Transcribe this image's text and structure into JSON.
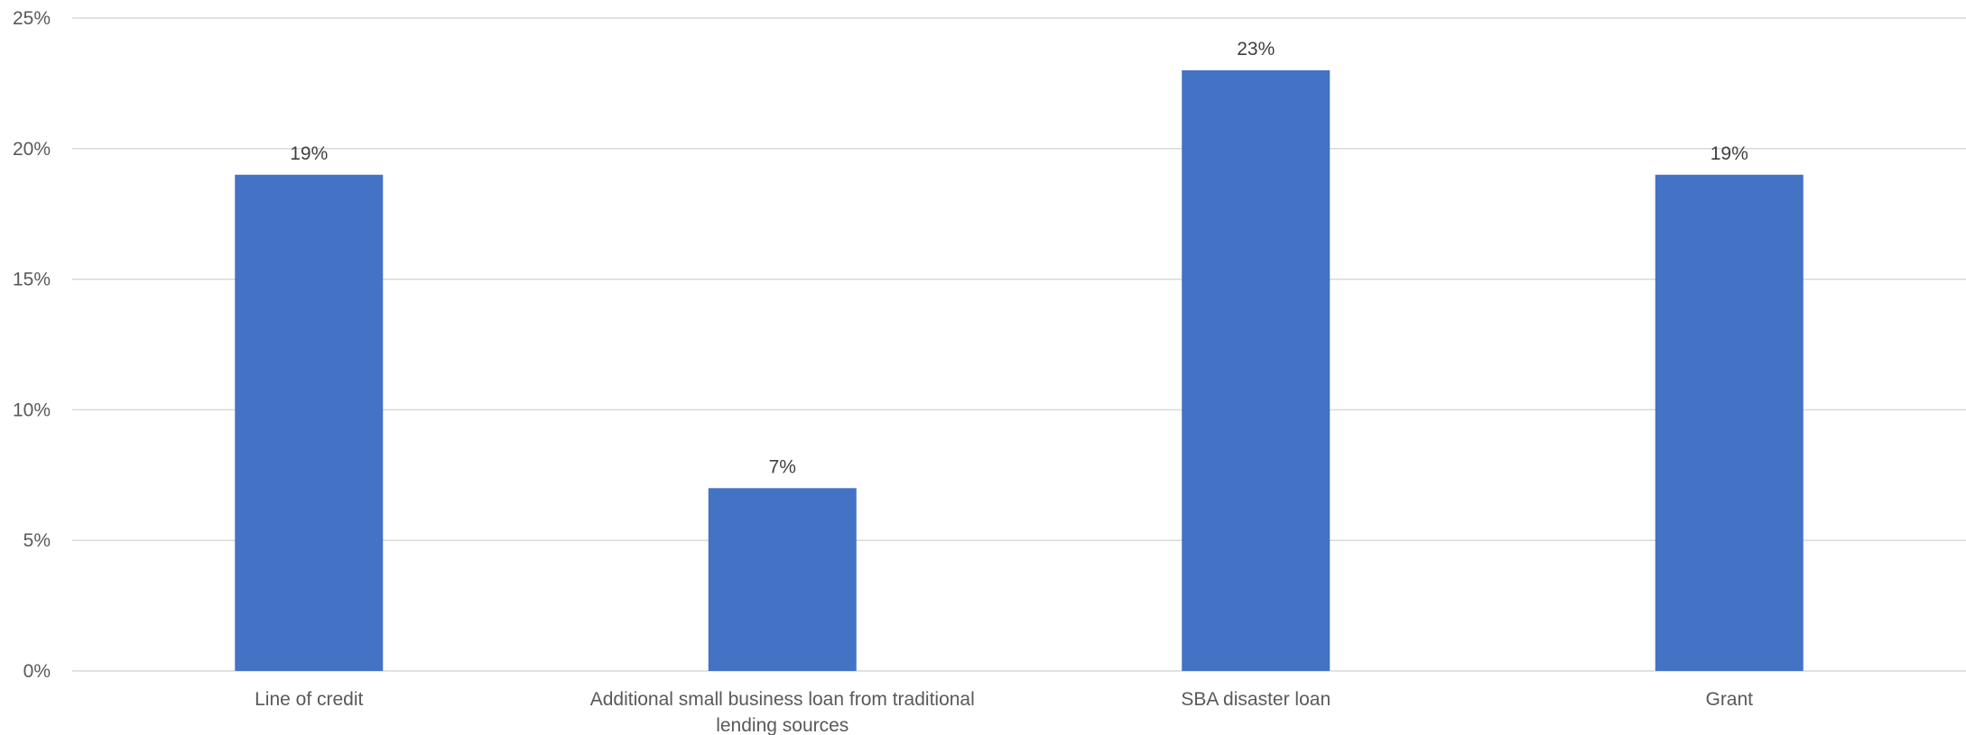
{
  "chart_data": {
    "type": "bar",
    "title": "",
    "xlabel": "",
    "ylabel": "",
    "categories": [
      [
        "Line of credit"
      ],
      [
        "Additional small business loan from traditional",
        "lending sources"
      ],
      [
        "SBA disaster loan"
      ],
      [
        "Grant"
      ]
    ],
    "values": [
      19,
      7,
      23,
      19
    ],
    "data_labels": [
      "19%",
      "7%",
      "23%",
      "19%"
    ],
    "ylim": [
      0,
      25
    ],
    "yticks": [
      0,
      5,
      10,
      15,
      20,
      25
    ],
    "ytick_labels": [
      "0%",
      "5%",
      "10%",
      "15%",
      "20%",
      "25%"
    ],
    "grid": true,
    "legend": "none",
    "colors": {
      "bar": "#4472C4",
      "grid": "#D9D9D9",
      "axis_text": "#595959",
      "label_text": "#404040"
    }
  }
}
